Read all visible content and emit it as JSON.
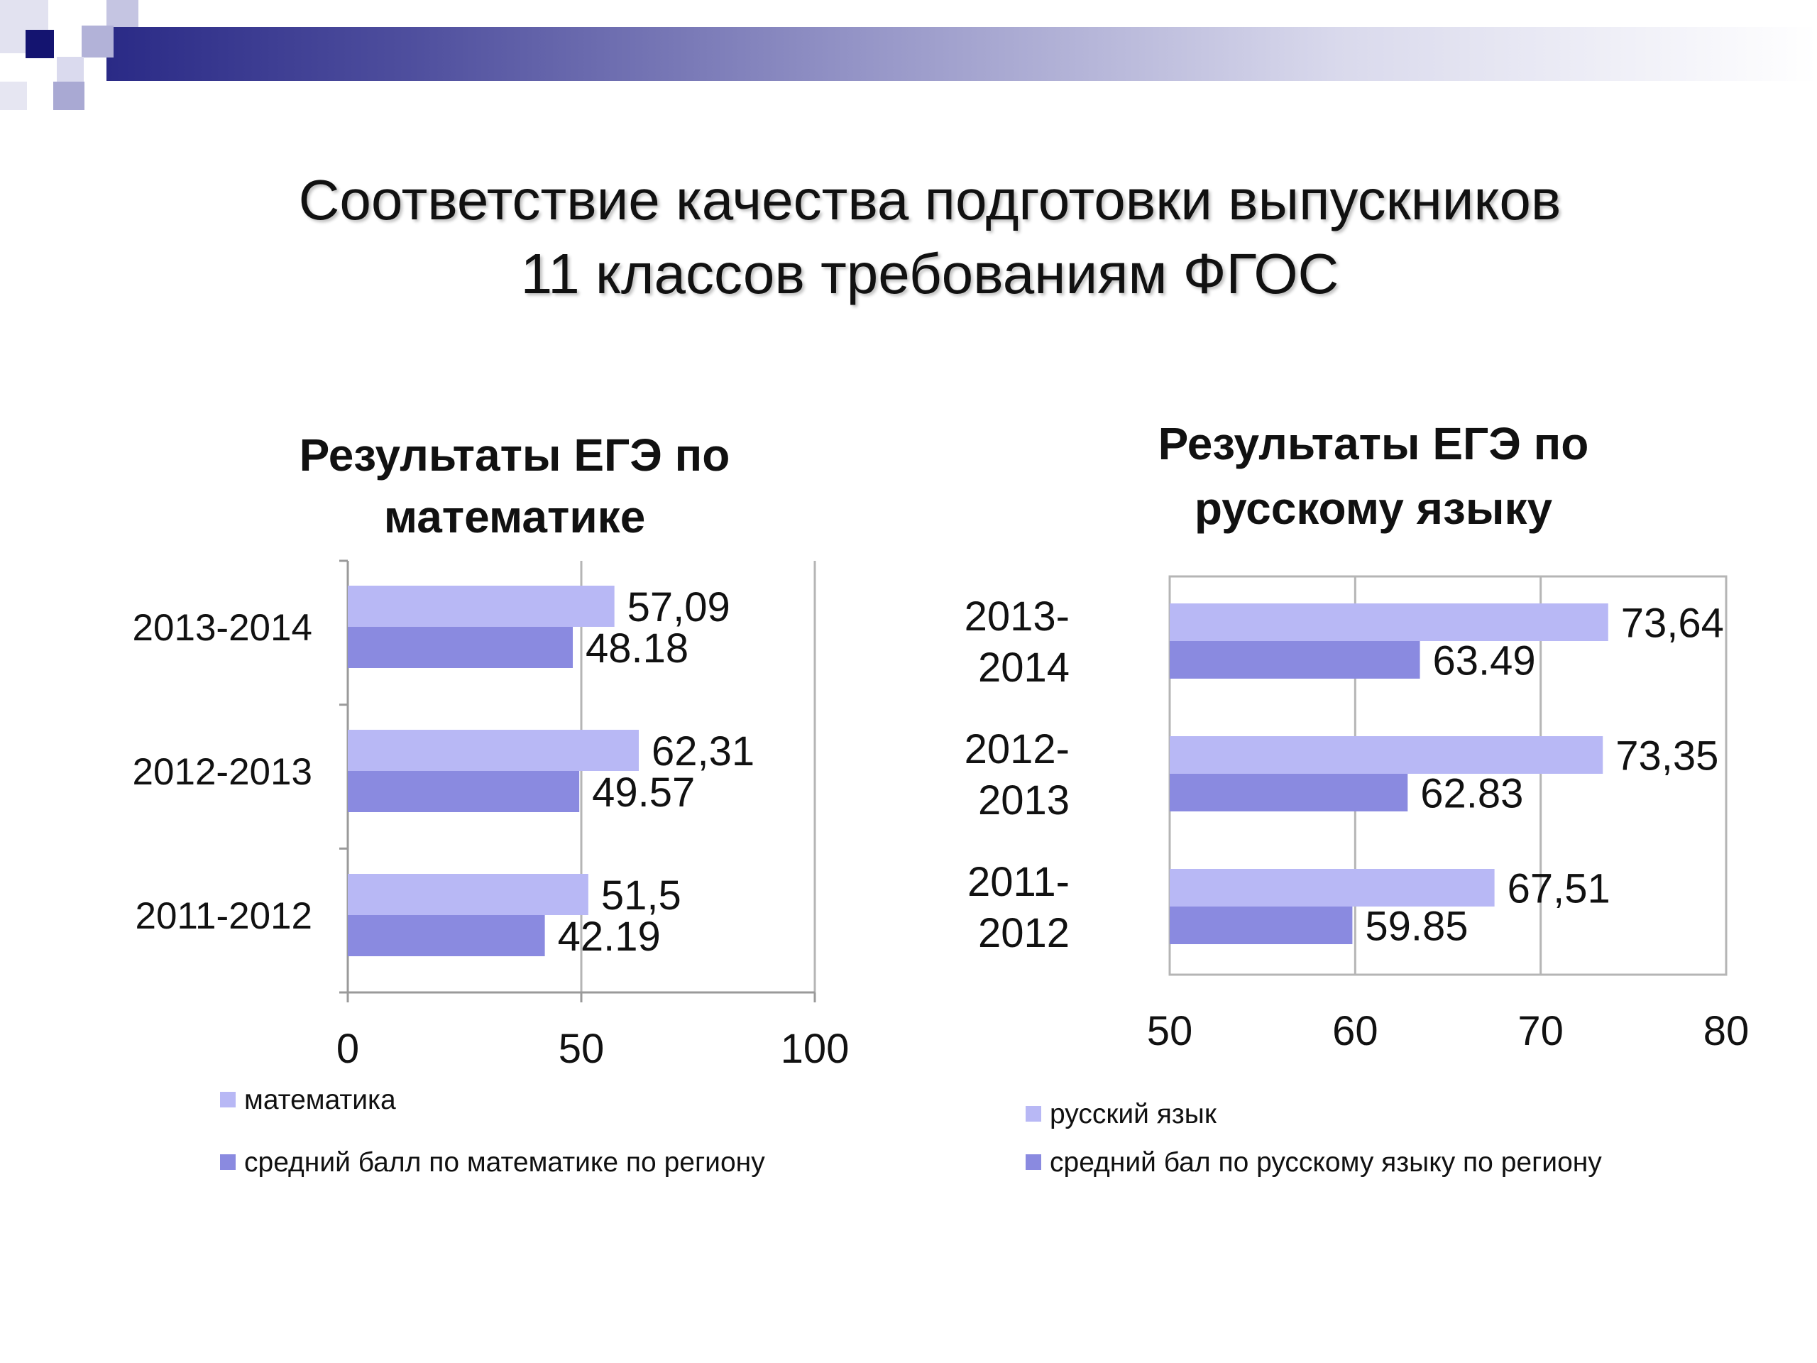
{
  "slide_title": {
    "line1": "Соответствие качества подготовки выпускников",
    "line2": "11 классов требованиям ФГОС"
  },
  "chart_data": [
    {
      "type": "bar",
      "orientation": "horizontal",
      "title": "Результаты ЕГЭ по математике",
      "title_lines": [
        "Результаты ЕГЭ по",
        "математике"
      ],
      "categories": [
        "2013-2014",
        "2012-2013",
        "2011-2012"
      ],
      "category_lines": [
        [
          "2013-2014"
        ],
        [
          "2012-2013"
        ],
        [
          "2011-2012"
        ]
      ],
      "series": [
        {
          "name": "математика",
          "values": [
            57.09,
            62.31,
            51.5
          ],
          "labels": [
            "57,09",
            "62,31",
            "51,5"
          ],
          "color": "#b8b8f5"
        },
        {
          "name": "средний балл по математике по региону",
          "values": [
            48.18,
            49.57,
            42.19
          ],
          "labels": [
            "48.18",
            "49.57",
            "42.19"
          ],
          "color": "#8a8ae0"
        }
      ],
      "xlim": [
        0,
        100
      ],
      "ticks": [
        0,
        50,
        100
      ],
      "tick_labels": [
        "0",
        "50",
        "100"
      ],
      "grid": true,
      "legend": "bottom"
    },
    {
      "type": "bar",
      "orientation": "horizontal",
      "title": "Результаты ЕГЭ по русскому языку",
      "title_lines": [
        "Результаты ЕГЭ по",
        "русскому языку"
      ],
      "categories": [
        "2013-2014",
        "2012-2013",
        "2011-2012"
      ],
      "category_lines": [
        [
          "2013-",
          "2014"
        ],
        [
          "2012-",
          "2013"
        ],
        [
          "2011-",
          "2012"
        ]
      ],
      "series": [
        {
          "name": "русский язык",
          "values": [
            73.64,
            73.35,
            67.51
          ],
          "labels": [
            "73,64",
            "73,35",
            "67,51"
          ],
          "color": "#b8b8f5"
        },
        {
          "name": "средний бал  по русскому языку по региону",
          "values": [
            63.49,
            62.83,
            59.85
          ],
          "labels": [
            "63.49",
            "62.83",
            "59.85"
          ],
          "color": "#8a8ae0"
        }
      ],
      "xlim": [
        50,
        80
      ],
      "ticks": [
        50,
        60,
        70,
        80
      ],
      "tick_labels": [
        "50",
        "60",
        "70",
        "80"
      ],
      "grid": true,
      "legend": "bottom"
    }
  ]
}
